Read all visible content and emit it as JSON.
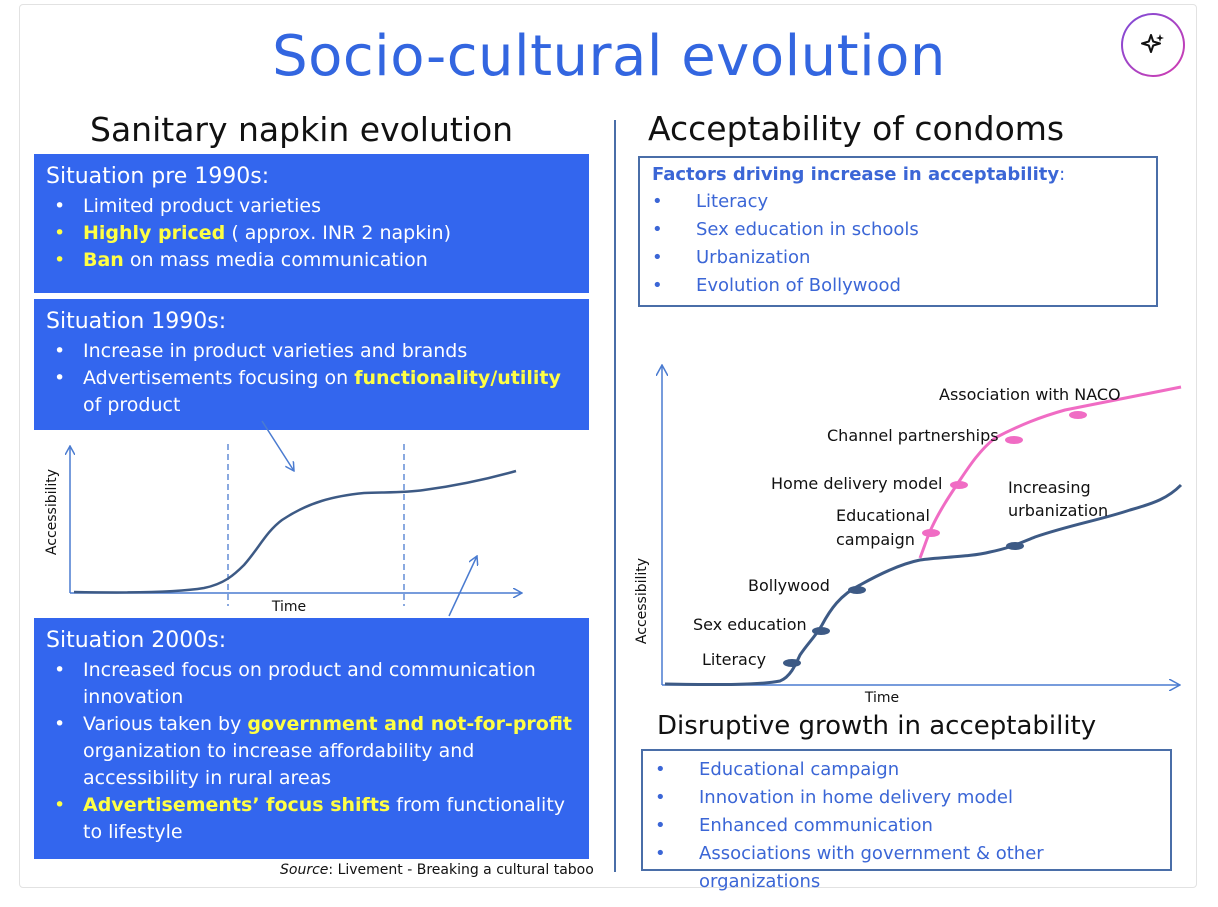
{
  "title": "Socio-cultural evolution",
  "left": {
    "heading": "Sanitary napkin evolution",
    "box1": {
      "heading": "Situation pre 1990s:",
      "items": [
        {
          "highlight": "",
          "text": "Limited product varieties"
        },
        {
          "highlight": "Highly priced",
          "text": " ( approx. INR 2 napkin)"
        },
        {
          "highlight": "Ban",
          "text": " on mass media communication"
        }
      ]
    },
    "box2": {
      "heading": "Situation 1990s:",
      "item1": "Increase in product varieties and brands",
      "item2_pre": "Advertisements focusing on ",
      "item2_hl": "functionality/utility",
      "item2_post": " of product"
    },
    "box3": {
      "heading": "Situation 2000s:",
      "item1": "Increased focus on product and communication innovation",
      "item2_pre": "Various taken by ",
      "item2_hl": "government and not-for-profit",
      "item2_post": " organization to increase affordability and accessibility in rural areas",
      "item3_hl": "Advertisements’ focus shifts",
      "item3_post": " from functionality to lifestyle"
    },
    "chart": {
      "ylabel": "Accessibility",
      "xlabel": "Time"
    },
    "source_label": "Source",
    "source_text": ": Livement - Breaking a cultural taboo"
  },
  "right": {
    "heading": "Acceptability of condoms",
    "factors": {
      "heading": "Factors driving increase in acceptability",
      "heading_suffix": ":",
      "items": [
        "Literacy",
        "Sex education in schools",
        "Urbanization",
        "Evolution of Bollywood"
      ]
    },
    "chart": {
      "ylabel": "Accessibility",
      "xlabel": "Time",
      "labels": {
        "literacy": "Literacy",
        "sex_education": "Sex education",
        "bollywood": "Bollywood",
        "educational_campaign_1": "Educational",
        "educational_campaign_2": "campaign",
        "home_delivery": "Home delivery model",
        "channel": "Channel partnerships",
        "naco": "Association with NACO",
        "urbanization_1": "Increasing",
        "urbanization_2": "urbanization"
      },
      "colors": {
        "base": "#3d5a85",
        "pink": "#f06cc4",
        "axis": "#4a7bd0"
      }
    },
    "disruptive": {
      "heading": "Disruptive growth in acceptability",
      "items": [
        "Educational campaign",
        "Innovation in home delivery model",
        "Enhanced communication",
        "Associations with government & other organizations"
      ]
    }
  },
  "ai_button": {
    "icon": "sparkle-icon"
  },
  "colors": {
    "title": "#3366e0",
    "box": "#3366ee",
    "highlight": "#ffff44"
  }
}
